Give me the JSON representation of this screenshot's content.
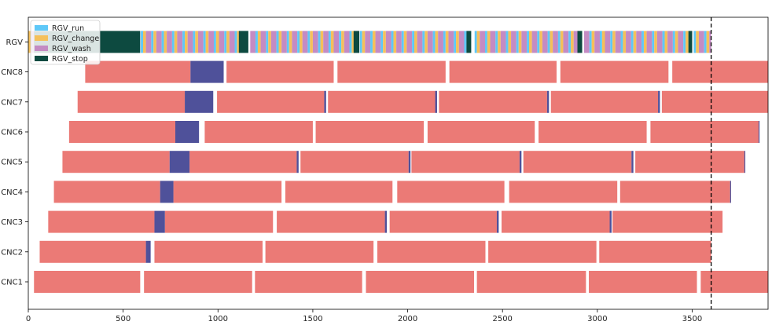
{
  "chart_data": {
    "type": "gantt",
    "title": "",
    "xlabel": "",
    "ylabel": "",
    "xlim": [
      0,
      3900
    ],
    "x_ticks": [
      0,
      500,
      1000,
      1500,
      2000,
      2500,
      3000,
      3500
    ],
    "x_tick_labels": [
      "0",
      "500",
      "1000",
      "1500",
      "2000",
      "2500",
      "3000",
      "3500"
    ],
    "categories": [
      "CNC1",
      "CNC2",
      "CNC3",
      "CNC4",
      "CNC5",
      "CNC6",
      "CNC7",
      "CNC8",
      "RGV"
    ],
    "reference_line": {
      "x": 3600,
      "style": "dashed",
      "color": "#000000"
    },
    "colors": {
      "process": "#eb7a76",
      "wait": "#4f519a",
      "RGV_run": "#5ec8f8",
      "RGV_change": "#f5c05a",
      "RGV_wash": "#c48bc3",
      "RGV_stop": "#0d4a40"
    },
    "legend": {
      "placement": "top-left",
      "entries": [
        {
          "label": "RGV_run",
          "color_key": "RGV_run"
        },
        {
          "label": "RGV_change",
          "color_key": "RGV_change"
        },
        {
          "label": "RGV_wash",
          "color_key": "RGV_wash"
        },
        {
          "label": "RGV_stop",
          "color_key": "RGV_stop"
        }
      ]
    },
    "machines": [
      {
        "name": "CNC1",
        "process": [
          [
            30,
            590
          ],
          [
            610,
            1180
          ],
          [
            1195,
            1760
          ],
          [
            1780,
            2350
          ],
          [
            2365,
            2940
          ],
          [
            2955,
            3525
          ],
          [
            3545,
            3900
          ]
        ],
        "wait": []
      },
      {
        "name": "CNC2",
        "process": [
          [
            60,
            620
          ],
          [
            665,
            1235
          ],
          [
            1250,
            1820
          ],
          [
            1840,
            2410
          ],
          [
            2425,
            2995
          ],
          [
            3010,
            3600
          ]
        ],
        "wait": [
          [
            620,
            645
          ]
        ]
      },
      {
        "name": "CNC3",
        "process": [
          [
            105,
            665
          ],
          [
            720,
            1290
          ],
          [
            1310,
            1880
          ],
          [
            1905,
            2470
          ],
          [
            2495,
            3065
          ],
          [
            3080,
            3660
          ]
        ],
        "wait": [
          [
            665,
            720
          ],
          [
            1880,
            1890
          ],
          [
            2470,
            2480
          ],
          [
            3065,
            3075
          ]
        ]
      },
      {
        "name": "CNC4",
        "process": [
          [
            135,
            695
          ],
          [
            765,
            1335
          ],
          [
            1355,
            1920
          ],
          [
            1945,
            2510
          ],
          [
            2535,
            3105
          ],
          [
            3120,
            3700
          ]
        ],
        "wait": [
          [
            695,
            765
          ],
          [
            3700,
            3705
          ]
        ]
      },
      {
        "name": "CNC5",
        "process": [
          [
            180,
            745
          ],
          [
            850,
            1415
          ],
          [
            1435,
            2005
          ],
          [
            2020,
            2590
          ],
          [
            2610,
            3180
          ],
          [
            3200,
            3775
          ]
        ],
        "wait": [
          [
            745,
            850
          ],
          [
            1415,
            1425
          ],
          [
            2005,
            2015
          ],
          [
            2590,
            2600
          ],
          [
            3180,
            3190
          ],
          [
            3775,
            3780
          ]
        ]
      },
      {
        "name": "CNC6",
        "process": [
          [
            215,
            775
          ],
          [
            930,
            1500
          ],
          [
            1515,
            2085
          ],
          [
            2105,
            2670
          ],
          [
            2690,
            3260
          ],
          [
            3280,
            3850
          ]
        ],
        "wait": [
          [
            775,
            900
          ],
          [
            3850,
            3855
          ]
        ]
      },
      {
        "name": "CNC7",
        "process": [
          [
            260,
            825
          ],
          [
            995,
            1560
          ],
          [
            1580,
            2145
          ],
          [
            2165,
            2735
          ],
          [
            2755,
            3320
          ],
          [
            3340,
            3900
          ]
        ],
        "wait": [
          [
            825,
            975
          ],
          [
            1560,
            1570
          ],
          [
            2145,
            2155
          ],
          [
            2735,
            2745
          ],
          [
            3320,
            3330
          ]
        ]
      },
      {
        "name": "CNC8",
        "process": [
          [
            300,
            855
          ],
          [
            1045,
            1610
          ],
          [
            1630,
            2200
          ],
          [
            2220,
            2785
          ],
          [
            2805,
            3375
          ],
          [
            3395,
            3900
          ]
        ],
        "wait": [
          [
            855,
            1030
          ]
        ]
      }
    ],
    "rgv_cycle": {
      "start": 0,
      "end": 3600,
      "stop_segments": [
        [
          30,
          590
        ],
        [
          1110,
          1160
        ],
        [
          1715,
          1745
        ],
        [
          2310,
          2335
        ],
        [
          2895,
          2920
        ],
        [
          3480,
          3500
        ]
      ],
      "pattern": [
        [
          "RGV_change",
          15
        ],
        [
          "RGV_wash",
          28
        ],
        [
          "RGV_run",
          12
        ]
      ]
    }
  }
}
